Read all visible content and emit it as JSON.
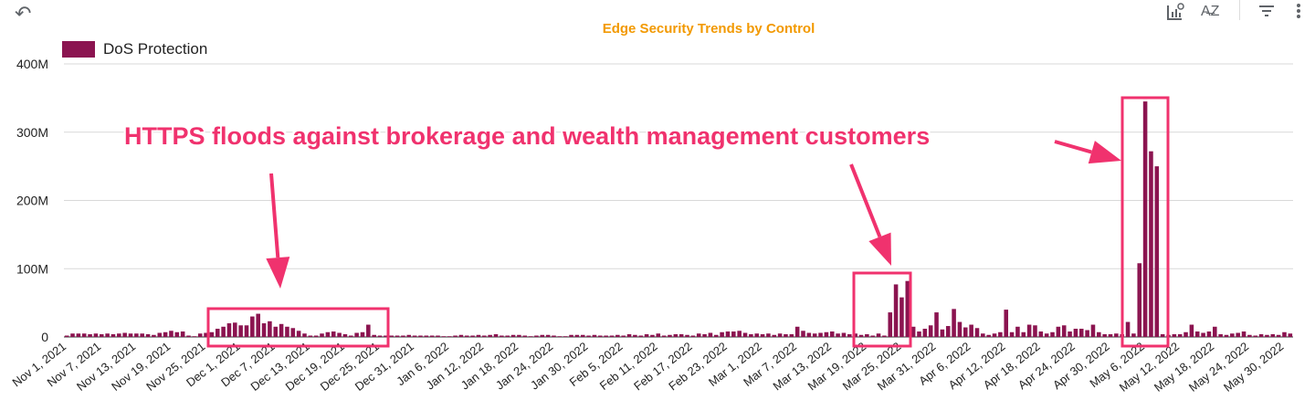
{
  "toolbar": {
    "undo_icon": "undo-icon",
    "chart_settings_icon": "chart-settings-icon",
    "sort_icon": "sort-az-icon",
    "filter_icon": "filter-icon",
    "more_icon": "more-vert-icon"
  },
  "colors": {
    "bar": "#8b1450",
    "title": "#f29900",
    "annotation": "#f0326e",
    "grid": "#d9d9d9"
  },
  "annotation": {
    "text": "HTTPS floods against brokerage and wealth management customers"
  },
  "chart_data": {
    "type": "bar",
    "title": "Edge Security Trends by Control",
    "xlabel": "",
    "ylabel": "",
    "ylim": [
      0,
      400000000
    ],
    "yticks": [
      0,
      100000000,
      200000000,
      300000000,
      400000000
    ],
    "ytick_labels": [
      "0",
      "100M",
      "200M",
      "300M",
      "400M"
    ],
    "grid": true,
    "legend_position": "top-left",
    "x_start": "2021-11-01",
    "x_end": "2022-05-31",
    "xtick_labels": [
      "Nov 1, 2021",
      "Nov 7, 2021",
      "Nov 13, 2021",
      "Nov 19, 2021",
      "Nov 25, 2021",
      "Dec 1, 2021",
      "Dec 7, 2021",
      "Dec 13, 2021",
      "Dec 19, 2021",
      "Dec 25, 2021",
      "Dec 31, 2021",
      "Jan 6, 2022",
      "Jan 12, 2022",
      "Jan 18, 2022",
      "Jan 24, 2022",
      "Jan 30, 2022",
      "Feb 5, 2022",
      "Feb 11, 2022",
      "Feb 17, 2022",
      "Feb 23, 2022",
      "Mar 1, 2022",
      "Mar 7, 2022",
      "Mar 13, 2022",
      "Mar 19, 2022",
      "Mar 25, 2022",
      "Mar 31, 2022",
      "Apr 6, 2022",
      "Apr 12, 2022",
      "Apr 18, 2022",
      "Apr 24, 2022",
      "Apr 30, 2022",
      "May 6, 2022",
      "May 12, 2022",
      "May 18, 2022",
      "May 24, 2022",
      "May 30, 2022"
    ],
    "series": [
      {
        "name": "DoS Protection",
        "unit": "M",
        "values": [
          2,
          5,
          5,
          5,
          4,
          5,
          4,
          5,
          4,
          5,
          6,
          5,
          5,
          5,
          4,
          3,
          6,
          7,
          9,
          7,
          8,
          1,
          0,
          5,
          6,
          7,
          12,
          15,
          20,
          21,
          17,
          17,
          30,
          34,
          20,
          23,
          15,
          19,
          15,
          13,
          9,
          5,
          1,
          1,
          5,
          7,
          8,
          6,
          4,
          1,
          6,
          7,
          18,
          3,
          2,
          2,
          2,
          2,
          1,
          3,
          2,
          2,
          1,
          1,
          2,
          0,
          0,
          2,
          3,
          2,
          1,
          3,
          2,
          3,
          4,
          2,
          1,
          3,
          3,
          2,
          0,
          1,
          3,
          3,
          2,
          0,
          0,
          3,
          3,
          3,
          2,
          3,
          2,
          1,
          1,
          3,
          2,
          4,
          3,
          2,
          4,
          3,
          5,
          2,
          3,
          4,
          4,
          3,
          2,
          5,
          4,
          6,
          3,
          7,
          8,
          8,
          9,
          6,
          4,
          5,
          4,
          5,
          3,
          5,
          4,
          4,
          15,
          9,
          6,
          5,
          6,
          7,
          8,
          5,
          6,
          4,
          5,
          3,
          4,
          1,
          5,
          1,
          36,
          77,
          58,
          82,
          15,
          8,
          12,
          17,
          36,
          11,
          16,
          41,
          22,
          14,
          18,
          13,
          5,
          3,
          5,
          7,
          40,
          7,
          15,
          7,
          18,
          17,
          8,
          5,
          7,
          15,
          17,
          8,
          12,
          12,
          10,
          18,
          7,
          4,
          4,
          5,
          4,
          22,
          5,
          108,
          345,
          272,
          250,
          4,
          3,
          4,
          4,
          7,
          18,
          8,
          6,
          8,
          15,
          4,
          3,
          5,
          6,
          8,
          3,
          2,
          4,
          3,
          4,
          3,
          7,
          5
        ]
      }
    ]
  }
}
